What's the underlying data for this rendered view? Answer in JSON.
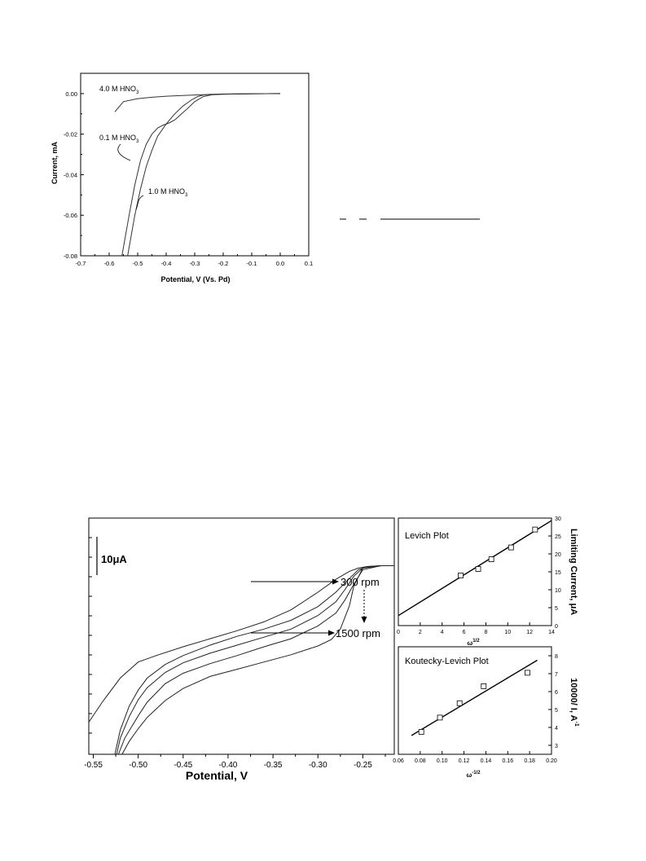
{
  "chart_data": [
    {
      "id": "nitric-acid-lsv",
      "type": "line",
      "xlabel": "Potential, V (Vs. Pd)",
      "ylabel": "Current, mA",
      "xlim": [
        -0.7,
        0.1
      ],
      "ylim": [
        -0.08,
        0.01
      ],
      "x_ticks": [
        "-0.7",
        "-0.6",
        "-0.5",
        "-0.4",
        "-0.3",
        "-0.2",
        "-0.1",
        "0.0",
        "0.1"
      ],
      "y_ticks": [
        "0.00",
        "-0.02",
        "-0.04",
        "-0.06",
        "-0.08"
      ],
      "grid": false,
      "annotations": [
        {
          "base": "4.0 M HNO",
          "sub": "3"
        },
        {
          "base": "0.1 M HNO",
          "sub": "3"
        },
        {
          "base": "1.0 M HNO",
          "sub": "3"
        }
      ],
      "series": [
        {
          "x": [
            -0.58,
            -0.55,
            -0.5,
            -0.45,
            -0.4,
            -0.35,
            -0.3,
            -0.25,
            -0.2,
            -0.1,
            0.0
          ],
          "y": [
            -0.009,
            -0.004,
            -0.0025,
            -0.0018,
            -0.0013,
            -0.001,
            -0.0007,
            -0.0005,
            -0.0003,
            -0.0001,
            0.0
          ]
        },
        {
          "x": [
            -0.555,
            -0.53,
            -0.51,
            -0.49,
            -0.47,
            -0.45,
            -0.43,
            -0.41,
            -0.39,
            -0.37,
            -0.33,
            -0.3,
            -0.27,
            -0.24,
            -0.2,
            -0.1,
            0.0
          ],
          "y": [
            -0.08,
            -0.06,
            -0.045,
            -0.033,
            -0.025,
            -0.02,
            -0.017,
            -0.0155,
            -0.0145,
            -0.013,
            -0.008,
            -0.004,
            -0.0015,
            -0.0006,
            -0.0003,
            -0.0001,
            0.0
          ]
        },
        {
          "x": [
            -0.535,
            -0.51,
            -0.49,
            -0.47,
            -0.45,
            -0.43,
            -0.4,
            -0.37,
            -0.34,
            -0.31,
            -0.29,
            -0.27,
            -0.25,
            -0.2,
            -0.1,
            0.0
          ],
          "y": [
            -0.08,
            -0.06,
            -0.047,
            -0.036,
            -0.028,
            -0.021,
            -0.015,
            -0.01,
            -0.006,
            -0.003,
            -0.0015,
            -0.0007,
            -0.0004,
            -0.0002,
            -0.0001,
            0.0
          ]
        }
      ]
    },
    {
      "id": "rde-lsv",
      "type": "line",
      "xlabel": "Potential, V",
      "xlim": [
        -0.555,
        -0.215
      ],
      "ylim": [
        0,
        27
      ],
      "x_ticks": [
        "-0.55",
        "-0.50",
        "-0.45",
        "-0.40",
        "-0.35",
        "-0.30",
        "-0.25"
      ],
      "scale_bar": "10μA",
      "grid": false,
      "annotations": [
        "300 rpm",
        "1500 rpm"
      ],
      "series": [
        {
          "name": "300 rpm",
          "x": [
            -0.555,
            -0.54,
            -0.52,
            -0.5,
            -0.48,
            -0.45,
            -0.42,
            -0.39,
            -0.36,
            -0.33,
            -0.3,
            -0.28,
            -0.265,
            -0.255,
            -0.245,
            -0.23,
            -0.215
          ],
          "y": [
            4.0,
            6.5,
            9.5,
            11.5,
            12.3,
            13.4,
            14.4,
            15.4,
            16.5,
            18.0,
            20.2,
            21.8,
            22.8,
            23.2,
            23.4,
            23.5,
            23.5
          ]
        },
        {
          "name": "",
          "x": [
            -0.526,
            -0.52,
            -0.51,
            -0.5,
            -0.49,
            -0.47,
            -0.45,
            -0.42,
            -0.39,
            -0.36,
            -0.33,
            -0.3,
            -0.28,
            -0.265,
            -0.255,
            -0.245,
            -0.23,
            -0.215
          ],
          "y": [
            0.0,
            3.0,
            6.0,
            8.0,
            9.5,
            11.2,
            12.3,
            13.6,
            14.7,
            15.6,
            16.7,
            18.4,
            20.2,
            21.9,
            23.0,
            23.4,
            23.5,
            23.5
          ]
        },
        {
          "name": "",
          "x": [
            -0.524,
            -0.52,
            -0.51,
            -0.5,
            -0.49,
            -0.47,
            -0.45,
            -0.42,
            -0.39,
            -0.36,
            -0.33,
            -0.3,
            -0.28,
            -0.27,
            -0.26,
            -0.25,
            -0.23,
            -0.215
          ],
          "y": [
            0.0,
            2.0,
            4.7,
            6.8,
            8.3,
            10.2,
            11.4,
            12.6,
            13.6,
            14.6,
            15.6,
            17.3,
            19.0,
            20.5,
            22.2,
            23.2,
            23.5,
            23.5
          ]
        },
        {
          "name": "",
          "x": [
            -0.522,
            -0.515,
            -0.5,
            -0.49,
            -0.47,
            -0.45,
            -0.42,
            -0.39,
            -0.36,
            -0.33,
            -0.3,
            -0.28,
            -0.27,
            -0.26,
            -0.25,
            -0.23,
            -0.215
          ],
          "y": [
            0.0,
            2.0,
            4.8,
            6.5,
            8.8,
            10.1,
            11.3,
            12.3,
            13.4,
            14.4,
            16.0,
            17.6,
            19.2,
            21.2,
            23.0,
            23.5,
            23.5
          ]
        },
        {
          "name": "1500 rpm",
          "x": [
            -0.518,
            -0.51,
            -0.5,
            -0.49,
            -0.47,
            -0.45,
            -0.42,
            -0.39,
            -0.36,
            -0.33,
            -0.3,
            -0.285,
            -0.275,
            -0.265,
            -0.26,
            -0.25,
            -0.23,
            -0.215
          ],
          "y": [
            0.0,
            1.6,
            3.2,
            4.6,
            6.7,
            8.2,
            9.7,
            10.6,
            11.5,
            12.4,
            13.5,
            14.3,
            15.6,
            18.5,
            21.0,
            23.2,
            23.5,
            23.5
          ]
        }
      ]
    },
    {
      "id": "levich",
      "type": "scatter",
      "title": "Levich Plot",
      "xlabel_base": "ω",
      "xlabel_sup": "1/2",
      "ylabel": "Limiting Current, μA",
      "xlim": [
        0,
        14
      ],
      "ylim": [
        0,
        30
      ],
      "x_ticks": [
        "0",
        "2",
        "4",
        "6",
        "8",
        "10",
        "12",
        "14"
      ],
      "y_ticks": [
        "0",
        "5",
        "10",
        "15",
        "20",
        "25",
        "30"
      ],
      "x": [
        5.7,
        7.3,
        8.5,
        10.3,
        12.5
      ],
      "y": [
        14.0,
        15.8,
        18.5,
        21.8,
        26.8
      ],
      "fit_line": {
        "x": [
          0,
          14
        ],
        "y": [
          2.8,
          29.3
        ]
      }
    },
    {
      "id": "koutecky-levich",
      "type": "scatter",
      "title": "Koutecky-Levich Plot",
      "xlabel_base": "ω",
      "xlabel_sup": "-1/2",
      "ylabel_base": "10000/ I, A",
      "ylabel_sup": "-1",
      "xlim": [
        0.06,
        0.2
      ],
      "ylim": [
        2.5,
        8.5
      ],
      "x_ticks": [
        "0.06",
        "0.08",
        "0.10",
        "0.12",
        "0.14",
        "0.16",
        "0.18",
        "0.20"
      ],
      "y_ticks": [
        "3",
        "4",
        "5",
        "6",
        "7",
        "8"
      ],
      "x": [
        0.081,
        0.098,
        0.116,
        0.138,
        0.178
      ],
      "y": [
        3.75,
        4.55,
        5.35,
        6.3,
        7.05
      ],
      "fit_line": {
        "x": [
          0.072,
          0.187
        ],
        "y": [
          3.55,
          7.75
        ]
      }
    }
  ]
}
